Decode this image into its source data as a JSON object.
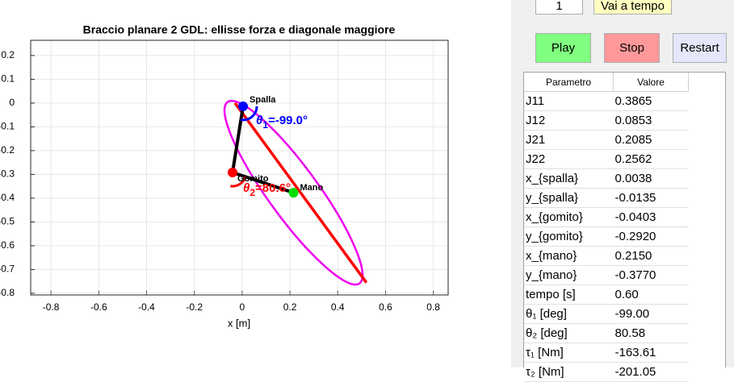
{
  "controls": {
    "time_input": "1",
    "goto_button": "Vai a tempo",
    "play": "Play",
    "stop": "Stop",
    "restart": "Restart"
  },
  "table": {
    "columns": [
      "Parametro",
      "Valore"
    ],
    "rows": [
      [
        "J11",
        "0.3865"
      ],
      [
        "J12",
        "0.0853"
      ],
      [
        "J21",
        "0.2085"
      ],
      [
        "J22",
        "0.2562"
      ],
      [
        "x_{spalla}",
        "0.0038"
      ],
      [
        "y_{spalla}",
        "-0.0135"
      ],
      [
        "x_{gomito}",
        "-0.0403"
      ],
      [
        "y_{gomito}",
        "-0.2920"
      ],
      [
        "x_{mano}",
        "0.2150"
      ],
      [
        "y_{mano}",
        "-0.3770"
      ],
      [
        "tempo [s]",
        "0.60"
      ],
      [
        "θ₁ [deg]",
        "-99.00"
      ],
      [
        "θ₂ [deg]",
        "80.58"
      ],
      [
        "τ₁ [Nm]",
        "-163.61"
      ],
      [
        "τ₂ [Nm]",
        "-201.05"
      ]
    ]
  },
  "plot": {
    "title": "Braccio planare 2 GDL: ellisse forza e diagonale maggiore",
    "xlabel": "x [m]",
    "xlim": [
      -0.885,
      0.862
    ],
    "ylim": [
      -0.807,
      0.264
    ],
    "xticks": [
      -0.8,
      -0.6,
      -0.4,
      -0.2,
      0,
      0.2,
      0.4,
      0.6,
      0.8
    ],
    "yticks": [
      0.2,
      0.1,
      0,
      -0.1,
      -0.2,
      -0.3,
      -0.4,
      -0.5,
      -0.6,
      -0.7,
      -0.8
    ],
    "grid": true,
    "shoulder": {
      "label": "Spalla",
      "x": 0.0038,
      "y": -0.0135,
      "color": "#0000ff"
    },
    "elbow": {
      "label": "Gomito",
      "x": -0.0403,
      "y": -0.292,
      "color": "#ff0000"
    },
    "hand": {
      "label": "Mano",
      "x": 0.215,
      "y": -0.377,
      "color": "#00dd00"
    },
    "ellipse": {
      "cx": 0.215,
      "cy": -0.377,
      "a": 0.47,
      "b": 0.105,
      "angle": -54,
      "color": "#ee00ee"
    },
    "diagonal": {
      "x": [
        -0.03,
        0.52
      ],
      "y": [
        0.0,
        -0.755
      ],
      "color": "#ff0000"
    },
    "theta1": {
      "symbol": "θ",
      "sub": "1",
      "text": "=-99.0°",
      "color": "#0000ff"
    },
    "theta2": {
      "symbol": "θ",
      "sub": "2",
      "text": "=80.6°",
      "color": "#ff0000"
    }
  }
}
